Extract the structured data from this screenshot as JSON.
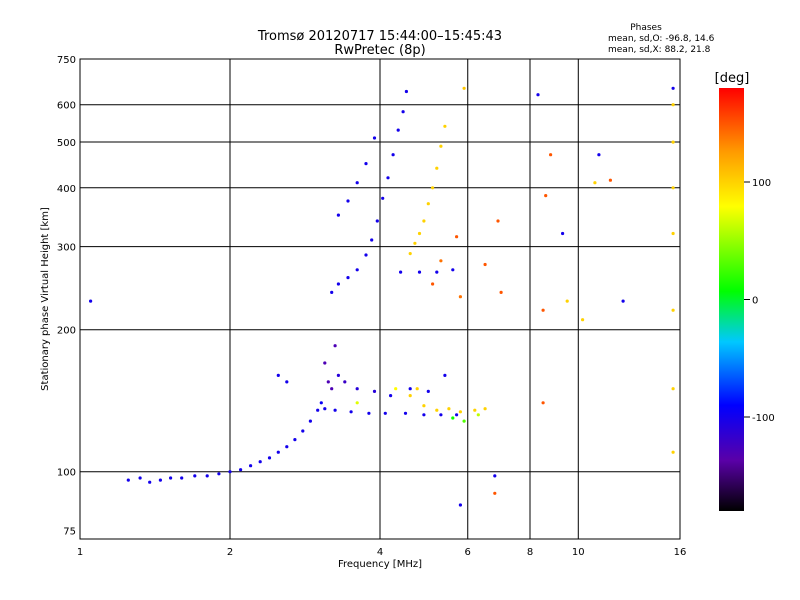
{
  "chart_data": {
    "type": "scatter",
    "title": "Tromsø 20120717 15:44:00–15:45:43",
    "subtitle": "RwPretec (8p)",
    "xlabel": "Frequency [MHz]",
    "ylabel": "Stationary phase Virtual Height [km]",
    "x_scale": "log",
    "y_scale": "log",
    "xlim": [
      1,
      16
    ],
    "ylim": [
      72,
      750
    ],
    "x_ticks": [
      1,
      2,
      4,
      6,
      8,
      10,
      16
    ],
    "y_ticks": [
      75,
      100,
      200,
      300,
      400,
      500,
      600,
      750
    ],
    "grid": true,
    "phases_box": {
      "title": "Phases",
      "line1": "mean, sd,O: -96.8, 14.6",
      "line2": "mean, sd,X:  88.2, 21.8"
    },
    "colorbar": {
      "label": "[deg]",
      "range": [
        -180,
        180
      ],
      "ticks": [
        100,
        0,
        -100
      ]
    },
    "series": [
      {
        "points": [
          [
            1.25,
            96,
            -100
          ],
          [
            1.32,
            97,
            -100
          ],
          [
            1.38,
            95,
            -100
          ],
          [
            1.45,
            96,
            -100
          ],
          [
            1.52,
            97,
            -100
          ],
          [
            1.6,
            97,
            -100
          ],
          [
            1.7,
            98,
            -100
          ],
          [
            1.8,
            98,
            -100
          ],
          [
            1.9,
            99,
            -100
          ],
          [
            2.0,
            100,
            -100
          ],
          [
            2.1,
            101,
            -100
          ],
          [
            2.2,
            103,
            -100
          ],
          [
            2.3,
            105,
            -100
          ],
          [
            2.4,
            107,
            -100
          ],
          [
            2.5,
            110,
            -100
          ],
          [
            2.6,
            113,
            -100
          ],
          [
            2.7,
            117,
            -100
          ],
          [
            2.8,
            122,
            -100
          ],
          [
            2.9,
            128,
            -100
          ],
          [
            3.0,
            135,
            -100
          ],
          [
            3.05,
            140,
            -95
          ],
          [
            3.1,
            136,
            -100
          ],
          [
            3.25,
            135,
            -100
          ],
          [
            3.5,
            134,
            -100
          ],
          [
            3.8,
            133,
            -100
          ],
          [
            4.1,
            133,
            -100
          ],
          [
            4.5,
            133,
            -100
          ],
          [
            4.9,
            132,
            -100
          ],
          [
            5.3,
            132,
            -100
          ],
          [
            5.7,
            132,
            -100
          ],
          [
            3.2,
            240,
            -100
          ],
          [
            3.3,
            250,
            -100
          ],
          [
            3.45,
            258,
            -100
          ],
          [
            3.6,
            268,
            -100
          ],
          [
            3.75,
            288,
            -100
          ],
          [
            3.85,
            310,
            -100
          ],
          [
            3.95,
            340,
            -100
          ],
          [
            4.05,
            380,
            -100
          ],
          [
            4.15,
            420,
            -100
          ],
          [
            4.25,
            470,
            -100
          ],
          [
            4.35,
            530,
            -100
          ],
          [
            4.45,
            580,
            -100
          ],
          [
            4.52,
            640,
            -100
          ],
          [
            3.3,
            350,
            -100
          ],
          [
            3.45,
            375,
            -100
          ],
          [
            3.6,
            410,
            -100
          ],
          [
            3.75,
            450,
            -100
          ],
          [
            3.9,
            510,
            -100
          ],
          [
            4.4,
            265,
            -100
          ],
          [
            4.8,
            265,
            -100
          ],
          [
            5.2,
            265,
            -100
          ],
          [
            5.6,
            268,
            -100
          ],
          [
            2.5,
            160,
            -100
          ],
          [
            2.6,
            155,
            -100
          ],
          [
            3.1,
            170,
            -130
          ],
          [
            3.15,
            155,
            -130
          ],
          [
            3.2,
            150,
            -130
          ],
          [
            3.25,
            185,
            -130
          ],
          [
            3.3,
            160,
            -110
          ],
          [
            3.4,
            155,
            -120
          ],
          [
            3.6,
            150,
            -110
          ],
          [
            3.9,
            148,
            -110
          ],
          [
            4.2,
            145,
            -100
          ],
          [
            4.6,
            150,
            -100
          ],
          [
            5.0,
            148,
            -100
          ],
          [
            5.4,
            160,
            -100
          ],
          [
            1.05,
            230,
            -100
          ],
          [
            6.8,
            98,
            -100
          ],
          [
            5.8,
            85,
            -100
          ],
          [
            9.3,
            320,
            -100
          ],
          [
            12.3,
            230,
            -100
          ],
          [
            11,
            470,
            -100
          ],
          [
            8.3,
            630,
            -100
          ],
          [
            15.5,
            650,
            -100
          ]
        ]
      },
      {
        "points": [
          [
            4.6,
            290,
            100
          ],
          [
            4.7,
            305,
            100
          ],
          [
            4.8,
            320,
            100
          ],
          [
            4.9,
            340,
            100
          ],
          [
            5.0,
            370,
            100
          ],
          [
            5.1,
            400,
            100
          ],
          [
            5.2,
            440,
            100
          ],
          [
            5.3,
            490,
            100
          ],
          [
            5.4,
            540,
            100
          ],
          [
            4.9,
            138,
            100
          ],
          [
            5.2,
            135,
            100
          ],
          [
            5.5,
            136,
            100
          ],
          [
            5.8,
            134,
            100
          ],
          [
            6.2,
            135,
            100
          ],
          [
            6.5,
            136,
            100
          ],
          [
            4.6,
            145,
            100
          ],
          [
            4.75,
            150,
            100
          ],
          [
            5.9,
            650,
            105
          ],
          [
            15.5,
            600,
            100
          ],
          [
            15.5,
            500,
            100
          ],
          [
            15.5,
            400,
            100
          ],
          [
            15.5,
            320,
            100
          ],
          [
            15.5,
            220,
            100
          ],
          [
            15.5,
            150,
            100
          ],
          [
            15.5,
            110,
            100
          ],
          [
            10.2,
            210,
            100
          ],
          [
            10.8,
            410,
            100
          ],
          [
            9.5,
            230,
            100
          ]
        ]
      },
      {
        "points": [
          [
            5.3,
            280,
            140
          ],
          [
            5.7,
            315,
            150
          ],
          [
            6.5,
            275,
            150
          ],
          [
            7.0,
            240,
            150
          ],
          [
            8.5,
            220,
            150
          ],
          [
            8.6,
            385,
            150
          ],
          [
            8.8,
            470,
            150
          ],
          [
            11.6,
            415,
            150
          ],
          [
            6.8,
            90,
            150
          ],
          [
            5.8,
            235,
            140
          ],
          [
            5.1,
            250,
            150
          ],
          [
            6.9,
            340,
            150
          ],
          [
            8.5,
            140,
            150
          ]
        ]
      },
      {
        "points": [
          [
            5.6,
            130,
            10
          ],
          [
            5.9,
            128,
            30
          ],
          [
            6.3,
            132,
            60
          ],
          [
            4.3,
            150,
            80
          ],
          [
            3.6,
            140,
            70
          ]
        ]
      }
    ]
  }
}
